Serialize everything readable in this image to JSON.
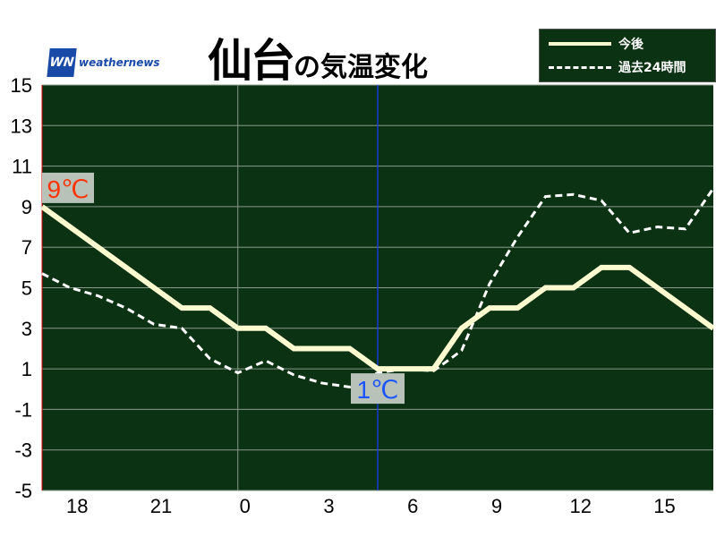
{
  "title": {
    "city": "仙台",
    "suffix": "の気温変化"
  },
  "logo": {
    "mark": "WN",
    "text": "weathernews"
  },
  "colors": {
    "background": "#0b3213",
    "forecast": "#fffbd0",
    "past": "#ffffff",
    "now_line": "#1a3cff",
    "max_label": "#ff3300",
    "min_label": "#1a55ff",
    "label_box": "#b8c2b8"
  },
  "chart_data": {
    "type": "line",
    "ylim": [
      -5,
      15
    ],
    "yticks": [
      "15",
      "13",
      "11",
      "9",
      "7",
      "5",
      "3",
      "1",
      "-1",
      "-3",
      "-5"
    ],
    "grid": true,
    "legend_position": "top-right",
    "x_hours": [
      17,
      18,
      19,
      20,
      21,
      22,
      23,
      0,
      1,
      2,
      3,
      4,
      5,
      6,
      7,
      8,
      9,
      10,
      11,
      12,
      13,
      14,
      15,
      16,
      17
    ],
    "xtick_labels": [
      {
        "hour_index": 1,
        "label": "18"
      },
      {
        "hour_index": 4,
        "label": "21"
      },
      {
        "hour_index": 7,
        "label": "0"
      },
      {
        "hour_index": 10,
        "label": "3"
      },
      {
        "hour_index": 13,
        "label": "6"
      },
      {
        "hour_index": 16,
        "label": "9"
      },
      {
        "hour_index": 19,
        "label": "12"
      },
      {
        "hour_index": 22,
        "label": "15"
      }
    ],
    "now_hour_index": 12,
    "series": [
      {
        "name": "今後",
        "style": "solid",
        "values": [
          9,
          8,
          7,
          6,
          5,
          4,
          4,
          3,
          3,
          2,
          2,
          2,
          1,
          1,
          1,
          3,
          4,
          4,
          5,
          5,
          6,
          6,
          5,
          4,
          3
        ]
      },
      {
        "name": "過去24時間",
        "style": "dashed",
        "values": [
          5.7,
          5.0,
          4.6,
          4.0,
          3.2,
          3.0,
          1.5,
          0.8,
          1.4,
          0.7,
          0.3,
          0.1,
          0.8,
          1.0,
          0.9,
          1.9,
          5.2,
          7.5,
          9.5,
          9.6,
          9.3,
          7.7,
          8.0,
          7.9,
          9.9
        ]
      }
    ],
    "annotations": [
      {
        "text": "9℃",
        "type": "max",
        "hour_index": 0,
        "value": 9
      },
      {
        "text": "1℃",
        "type": "min",
        "hour_index": 12,
        "value": 1
      }
    ]
  }
}
